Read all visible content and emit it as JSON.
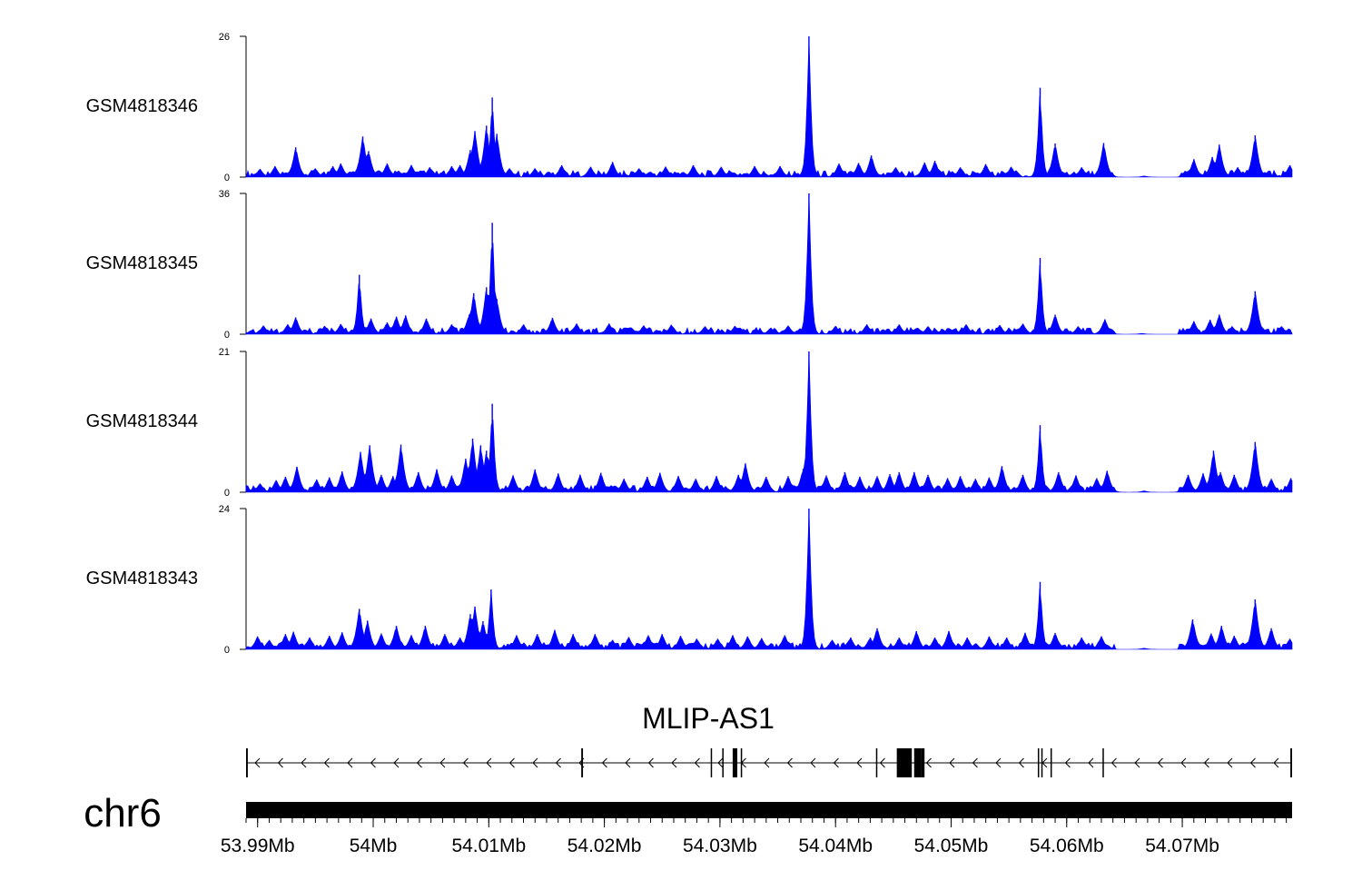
{
  "chart_data": {
    "type": "area",
    "genome_x_range_bp": [
      53989000,
      54079500
    ],
    "color": "#0000ff",
    "tracks": [
      {
        "name": "GSM4818346",
        "ylim": [
          0,
          26
        ],
        "ytick_labels": [
          "26",
          "0"
        ],
        "peaks": [
          [
            53990200,
            1.5
          ],
          [
            53991500,
            2.0
          ],
          [
            53993300,
            5.5
          ],
          [
            53995000,
            1.6
          ],
          [
            53996500,
            2.0
          ],
          [
            53997200,
            2.5
          ],
          [
            53998800,
            2.6
          ],
          [
            53999100,
            7.5
          ],
          [
            53999600,
            4.8
          ],
          [
            54001200,
            2.5
          ],
          [
            54003300,
            2.2
          ],
          [
            54004900,
            1.8
          ],
          [
            54006800,
            2.0
          ],
          [
            54007500,
            2.2
          ],
          [
            54008400,
            5.0
          ],
          [
            54008800,
            8.5
          ],
          [
            54009800,
            9.5
          ],
          [
            54010300,
            14.7
          ],
          [
            54010700,
            8.0
          ],
          [
            54011800,
            1.6
          ],
          [
            54014000,
            1.6
          ],
          [
            54016300,
            2.2
          ],
          [
            54018800,
            1.9
          ],
          [
            54020700,
            2.8
          ],
          [
            54023000,
            1.6
          ],
          [
            54025300,
            1.9
          ],
          [
            54027700,
            2.2
          ],
          [
            54030100,
            1.9
          ],
          [
            54033000,
            2.0
          ],
          [
            54035200,
            2.0
          ],
          [
            54037700,
            26.0
          ],
          [
            54040300,
            2.5
          ],
          [
            54042000,
            2.6
          ],
          [
            54043100,
            4.0
          ],
          [
            54045200,
            1.8
          ],
          [
            54047700,
            2.7
          ],
          [
            54048600,
            3.0
          ],
          [
            54050800,
            1.8
          ],
          [
            54053000,
            2.4
          ],
          [
            54055200,
            1.9
          ],
          [
            54057700,
            16.5
          ],
          [
            54059000,
            6.2
          ],
          [
            54061300,
            1.8
          ],
          [
            54063200,
            6.3
          ],
          [
            54066700,
            0.2
          ],
          [
            54071000,
            3.3
          ],
          [
            54072600,
            3.7
          ],
          [
            54073200,
            6.0
          ],
          [
            54074800,
            1.8
          ],
          [
            54076300,
            7.7
          ],
          [
            54079300,
            2.2
          ]
        ]
      },
      {
        "name": "GSM4818345",
        "ylim": [
          0,
          36
        ],
        "ytick_labels": [
          "36",
          "0"
        ],
        "peaks": [
          [
            53990500,
            2.2
          ],
          [
            53992600,
            2.5
          ],
          [
            53993300,
            4.3
          ],
          [
            53995800,
            2.1
          ],
          [
            53997200,
            2.6
          ],
          [
            53998800,
            15.2
          ],
          [
            53999800,
            4.0
          ],
          [
            54001200,
            3.0
          ],
          [
            54002000,
            4.5
          ],
          [
            54002800,
            4.8
          ],
          [
            54004600,
            4.0
          ],
          [
            54006800,
            2.5
          ],
          [
            54008300,
            5.0
          ],
          [
            54008700,
            10.5
          ],
          [
            54009800,
            12.0
          ],
          [
            54010300,
            28.5
          ],
          [
            54010700,
            9.0
          ],
          [
            54013000,
            2.5
          ],
          [
            54015500,
            4.2
          ],
          [
            54017600,
            2.7
          ],
          [
            54020400,
            2.7
          ],
          [
            54023400,
            2.2
          ],
          [
            54025800,
            2.4
          ],
          [
            54028700,
            2.0
          ],
          [
            54031300,
            2.1
          ],
          [
            54034400,
            1.6
          ],
          [
            54035900,
            2.2
          ],
          [
            54037700,
            36.0
          ],
          [
            54040000,
            2.1
          ],
          [
            54042700,
            2.5
          ],
          [
            54045500,
            2.5
          ],
          [
            54048000,
            2.0
          ],
          [
            54051300,
            2.5
          ],
          [
            54054200,
            2.3
          ],
          [
            54056200,
            2.7
          ],
          [
            54057700,
            19.5
          ],
          [
            54059000,
            5.0
          ],
          [
            54061000,
            2.0
          ],
          [
            54063300,
            3.8
          ],
          [
            54066500,
            0.2
          ],
          [
            54071000,
            3.3
          ],
          [
            54072400,
            3.7
          ],
          [
            54073200,
            5.0
          ],
          [
            54074300,
            2.0
          ],
          [
            54076300,
            11.0
          ],
          [
            54078600,
            2.0
          ]
        ]
      },
      {
        "name": "GSM4818344",
        "ylim": [
          0,
          21
        ],
        "ytick_labels": [
          "21",
          "0"
        ],
        "peaks": [
          [
            53990200,
            1.3
          ],
          [
            53991600,
            1.8
          ],
          [
            53992400,
            2.3
          ],
          [
            53993400,
            3.8
          ],
          [
            53995100,
            1.9
          ],
          [
            53996200,
            2.2
          ],
          [
            53997300,
            3.1
          ],
          [
            53998900,
            6.0
          ],
          [
            53999700,
            7.0
          ],
          [
            54000700,
            2.6
          ],
          [
            54001700,
            2.4
          ],
          [
            54002400,
            7.1
          ],
          [
            54003900,
            3.0
          ],
          [
            54005500,
            3.4
          ],
          [
            54006800,
            2.5
          ],
          [
            54008000,
            5.0
          ],
          [
            54008600,
            8.0
          ],
          [
            54009300,
            7.0
          ],
          [
            54009800,
            6.2
          ],
          [
            54010300,
            13.2
          ],
          [
            54012100,
            2.5
          ],
          [
            54014000,
            3.4
          ],
          [
            54016000,
            2.8
          ],
          [
            54017900,
            2.6
          ],
          [
            54019700,
            2.9
          ],
          [
            54021700,
            2.0
          ],
          [
            54023700,
            2.3
          ],
          [
            54024800,
            2.9
          ],
          [
            54026400,
            2.4
          ],
          [
            54027900,
            2.0
          ],
          [
            54029700,
            2.4
          ],
          [
            54031600,
            2.6
          ],
          [
            54032200,
            4.3
          ],
          [
            54034000,
            2.3
          ],
          [
            54035900,
            2.4
          ],
          [
            54037200,
            3.5
          ],
          [
            54037700,
            21.0
          ],
          [
            54039200,
            2.5
          ],
          [
            54040800,
            3.0
          ],
          [
            54042100,
            2.3
          ],
          [
            54043600,
            2.4
          ],
          [
            54044700,
            2.7
          ],
          [
            54045500,
            3.0
          ],
          [
            54046800,
            3.0
          ],
          [
            54048000,
            2.6
          ],
          [
            54049700,
            2.1
          ],
          [
            54050800,
            2.4
          ],
          [
            54052100,
            2.0
          ],
          [
            54053300,
            2.2
          ],
          [
            54054400,
            3.9
          ],
          [
            54056200,
            2.6
          ],
          [
            54057700,
            10.0
          ],
          [
            54059300,
            3.0
          ],
          [
            54060800,
            2.5
          ],
          [
            54062600,
            2.1
          ],
          [
            54063500,
            3.2
          ],
          [
            54066700,
            0.2
          ],
          [
            54070500,
            2.6
          ],
          [
            54071800,
            2.8
          ],
          [
            54072700,
            6.2
          ],
          [
            54073300,
            3.0
          ],
          [
            54074500,
            2.6
          ],
          [
            54076300,
            7.5
          ],
          [
            54077700,
            2.0
          ],
          [
            54079400,
            2.1
          ]
        ]
      },
      {
        "name": "GSM4818343",
        "ylim": [
          0,
          24
        ],
        "ytick_labels": [
          "24",
          "0"
        ],
        "peaks": [
          [
            53990000,
            2.2
          ],
          [
            53991000,
            1.6
          ],
          [
            53992400,
            2.6
          ],
          [
            53993100,
            3.0
          ],
          [
            53994500,
            2.0
          ],
          [
            53996200,
            2.3
          ],
          [
            53997300,
            2.9
          ],
          [
            53998800,
            6.9
          ],
          [
            53999500,
            4.9
          ],
          [
            54000700,
            2.7
          ],
          [
            54002000,
            4.0
          ],
          [
            54003300,
            2.4
          ],
          [
            54004500,
            4.0
          ],
          [
            54006200,
            2.6
          ],
          [
            54007500,
            2.0
          ],
          [
            54008400,
            6.0
          ],
          [
            54008800,
            7.3
          ],
          [
            54009500,
            4.8
          ],
          [
            54010200,
            10.2
          ],
          [
            54012400,
            2.4
          ],
          [
            54014200,
            2.6
          ],
          [
            54015700,
            3.3
          ],
          [
            54017300,
            2.6
          ],
          [
            54019200,
            2.6
          ],
          [
            54020700,
            1.6
          ],
          [
            54022100,
            2.1
          ],
          [
            54023800,
            2.4
          ],
          [
            54025000,
            2.6
          ],
          [
            54026600,
            2.3
          ],
          [
            54028000,
            1.8
          ],
          [
            54029800,
            1.8
          ],
          [
            54031100,
            2.4
          ],
          [
            54032400,
            2.2
          ],
          [
            54033600,
            1.9
          ],
          [
            54035600,
            2.4
          ],
          [
            54037700,
            24.0
          ],
          [
            54039700,
            1.6
          ],
          [
            54041300,
            2.0
          ],
          [
            54043000,
            2.0
          ],
          [
            54043600,
            3.6
          ],
          [
            54045500,
            2.0
          ],
          [
            54047000,
            3.1
          ],
          [
            54048600,
            2.0
          ],
          [
            54049800,
            3.1
          ],
          [
            54051400,
            2.0
          ],
          [
            54053300,
            2.2
          ],
          [
            54054800,
            2.0
          ],
          [
            54056400,
            2.8
          ],
          [
            54057700,
            11.5
          ],
          [
            54059000,
            2.8
          ],
          [
            54061300,
            2.0
          ],
          [
            54063000,
            2.2
          ],
          [
            54066700,
            0.2
          ],
          [
            54070900,
            5.1
          ],
          [
            54072500,
            2.7
          ],
          [
            54073400,
            4.0
          ],
          [
            54074500,
            2.3
          ],
          [
            54076300,
            8.5
          ],
          [
            54077700,
            3.6
          ],
          [
            54079300,
            1.8
          ]
        ]
      }
    ],
    "gene": {
      "name": "MLIP-AS1",
      "strand": "-",
      "span_bp": [
        53989000,
        54079500
      ],
      "exons_bp": [
        [
          53989000,
          53989150
        ],
        [
          54018000,
          54018150
        ],
        [
          54029200,
          54029280
        ],
        [
          54030200,
          54030270
        ],
        [
          54031100,
          54031500
        ],
        [
          54031800,
          54031900
        ],
        [
          54043500,
          54043580
        ],
        [
          54045300,
          54046600
        ],
        [
          54046800,
          54047400
        ],
        [
          54047400,
          54047700
        ],
        [
          54057500,
          54057570
        ],
        [
          54057800,
          54057850
        ],
        [
          54058600,
          54058670
        ],
        [
          54063100,
          54063160
        ],
        [
          54079350,
          54079500
        ]
      ]
    },
    "chromosome": "chr6",
    "x_axis": {
      "ticks_bp": [
        53990000,
        54000000,
        54010000,
        54020000,
        54030000,
        54040000,
        54050000,
        54060000,
        54070000
      ],
      "tick_labels": [
        "53.99Mb",
        "54Mb",
        "54.01Mb",
        "54.02Mb",
        "54.03Mb",
        "54.04Mb",
        "54.05Mb",
        "54.06Mb",
        "54.07Mb"
      ],
      "minor_tick_step_bp": 1000
    }
  }
}
